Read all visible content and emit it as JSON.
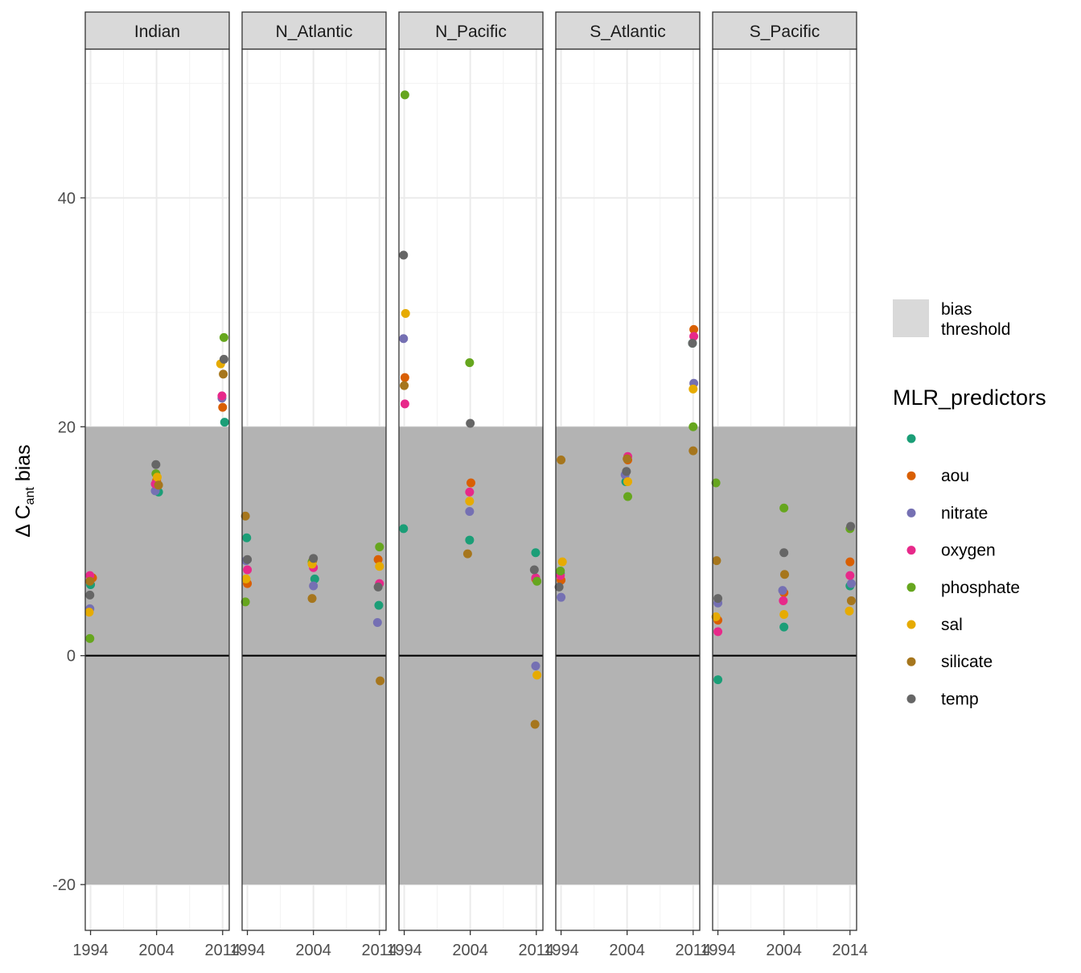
{
  "chart_data": {
    "type": "scatter",
    "ylabel_prefix": "Δ C",
    "ylabel_sub": "ant",
    "ylabel_suffix": " bias",
    "ylim": [
      -24,
      53
    ],
    "y_ticks": [
      -20,
      0,
      20,
      40
    ],
    "x_ticks": [
      1994,
      2004,
      2014
    ],
    "bias_threshold": [
      -20,
      20
    ],
    "legend": {
      "threshold_label_1": "bias",
      "threshold_label_2": "threshold",
      "title": "MLR_predictors",
      "placement": "right"
    },
    "predictors": [
      {
        "name": "",
        "color": "#1B9E77"
      },
      {
        "name": "aou",
        "color": "#D95F02"
      },
      {
        "name": "nitrate",
        "color": "#7570B3"
      },
      {
        "name": "oxygen",
        "color": "#E7298A"
      },
      {
        "name": "phosphate",
        "color": "#66A61E"
      },
      {
        "name": "sal",
        "color": "#E6AB02"
      },
      {
        "name": "silicate",
        "color": "#A6761D"
      },
      {
        "name": "temp",
        "color": "#666666"
      }
    ],
    "panels": [
      {
        "name": "Indian",
        "points": {
          "": [
            [
              2004.3,
              14.3
            ],
            [
              2014.3,
              20.4
            ],
            [
              1994.0,
              6.2
            ]
          ],
          "aou": [
            [
              1994.3,
              6.8
            ],
            [
              2004.0,
              15.3
            ],
            [
              2014.0,
              21.7
            ]
          ],
          "nitrate": [
            [
              1993.9,
              4.1
            ],
            [
              2003.8,
              14.4
            ],
            [
              2013.9,
              22.5
            ]
          ],
          "oxygen": [
            [
              1993.9,
              7.0
            ],
            [
              2003.8,
              15.0
            ],
            [
              2013.9,
              22.7
            ]
          ],
          "phosphate": [
            [
              1993.9,
              1.5
            ],
            [
              2003.9,
              15.9
            ],
            [
              2014.2,
              27.8
            ]
          ],
          "sal": [
            [
              1993.8,
              3.8
            ],
            [
              2004.1,
              15.6
            ],
            [
              2013.7,
              25.5
            ]
          ],
          "silicate": [
            [
              1993.9,
              6.5
            ],
            [
              2004.3,
              14.9
            ],
            [
              2014.1,
              24.6
            ]
          ],
          "temp": [
            [
              1993.9,
              5.3
            ],
            [
              2003.9,
              16.7
            ],
            [
              2014.2,
              25.9
            ]
          ]
        }
      },
      {
        "name": "N_Atlantic",
        "points": {
          "": [
            [
              1993.9,
              10.3
            ],
            [
              2004.2,
              6.7
            ],
            [
              2013.9,
              4.4
            ]
          ],
          "aou": [
            [
              1994.0,
              6.3
            ],
            [
              2003.9,
              8.3
            ],
            [
              2013.8,
              8.4
            ]
          ],
          "nitrate": [
            [
              1993.8,
              8.3
            ],
            [
              2004.0,
              6.1
            ],
            [
              2013.7,
              2.9
            ]
          ],
          "oxygen": [
            [
              1994.0,
              7.5
            ],
            [
              2004.0,
              7.7
            ],
            [
              2014.0,
              6.3
            ]
          ],
          "phosphate": [
            [
              1993.7,
              4.7
            ],
            [
              2003.8,
              8.2
            ],
            [
              2014.0,
              9.5
            ]
          ],
          "sal": [
            [
              1993.8,
              6.7
            ],
            [
              2003.8,
              8.0
            ],
            [
              2014.0,
              7.8
            ]
          ],
          "silicate": [
            [
              1993.7,
              12.2
            ],
            [
              2003.8,
              5.0
            ],
            [
              2014.1,
              -2.2
            ]
          ],
          "temp": [
            [
              1994.0,
              8.4
            ],
            [
              2004.0,
              8.5
            ],
            [
              2013.8,
              6.0
            ]
          ]
        }
      },
      {
        "name": "N_Pacific",
        "points": {
          "": [
            [
              1993.9,
              11.1
            ],
            [
              2003.9,
              10.1
            ],
            [
              2013.9,
              9.0
            ]
          ],
          "aou": [
            [
              1994.1,
              24.3
            ],
            [
              2004.1,
              15.1
            ],
            [
              2013.9,
              6.7
            ]
          ],
          "nitrate": [
            [
              1993.9,
              27.7
            ],
            [
              2003.9,
              12.6
            ],
            [
              2013.9,
              -0.9
            ]
          ],
          "oxygen": [
            [
              1994.1,
              22.0
            ],
            [
              2003.9,
              14.3
            ],
            [
              2013.9,
              6.8
            ]
          ],
          "phosphate": [
            [
              1994.1,
              49.0
            ],
            [
              2003.9,
              25.6
            ],
            [
              2014.1,
              6.5
            ]
          ],
          "sal": [
            [
              1994.2,
              29.9
            ],
            [
              2003.9,
              13.5
            ],
            [
              2014.1,
              -1.7
            ]
          ],
          "silicate": [
            [
              1994.0,
              23.6
            ],
            [
              2003.6,
              8.9
            ],
            [
              2013.8,
              -6.0
            ]
          ],
          "temp": [
            [
              1993.9,
              35.0
            ],
            [
              2004.0,
              20.3
            ],
            [
              2013.7,
              7.5
            ]
          ]
        }
      },
      {
        "name": "S_Atlantic",
        "points": {
          "": [
            [
              1993.9,
              7.2
            ],
            [
              2003.8,
              15.2
            ],
            [
              2013.9,
              27.3
            ]
          ],
          "aou": [
            [
              1994.0,
              6.6
            ],
            [
              2004.1,
              17.1
            ],
            [
              2014.1,
              28.5
            ]
          ],
          "nitrate": [
            [
              1994.0,
              5.1
            ],
            [
              2003.7,
              15.8
            ],
            [
              2014.1,
              23.8
            ]
          ],
          "oxygen": [
            [
              1993.9,
              7.0
            ],
            [
              2004.1,
              17.4
            ],
            [
              2014.1,
              27.9
            ]
          ],
          "phosphate": [
            [
              1993.9,
              7.4
            ],
            [
              2004.1,
              13.9
            ],
            [
              2014.0,
              20.0
            ]
          ],
          "sal": [
            [
              1994.2,
              8.2
            ],
            [
              2004.1,
              15.2
            ],
            [
              2014.0,
              23.3
            ]
          ],
          "silicate": [
            [
              1994.0,
              17.1
            ],
            [
              2004.0,
              17.2
            ],
            [
              2014.0,
              17.9
            ]
          ],
          "temp": [
            [
              1993.7,
              6.0
            ],
            [
              2003.9,
              16.1
            ],
            [
              2013.9,
              27.3
            ]
          ]
        }
      },
      {
        "name": "S_Pacific",
        "points": {
          "": [
            [
              1994.0,
              -2.1
            ],
            [
              2004.0,
              2.5
            ],
            [
              2014.0,
              6.1
            ]
          ],
          "aou": [
            [
              1994.0,
              3.1
            ],
            [
              2004.0,
              5.5
            ],
            [
              2014.0,
              8.2
            ]
          ],
          "nitrate": [
            [
              1994.0,
              4.6
            ],
            [
              2003.8,
              5.7
            ],
            [
              2014.2,
              6.3
            ]
          ],
          "oxygen": [
            [
              1994.0,
              2.1
            ],
            [
              2003.9,
              4.8
            ],
            [
              2014.0,
              7.0
            ]
          ],
          "phosphate": [
            [
              1993.7,
              15.1
            ],
            [
              2004.0,
              12.9
            ],
            [
              2014.0,
              11.1
            ]
          ],
          "sal": [
            [
              1993.7,
              3.4
            ],
            [
              2004.0,
              3.6
            ],
            [
              2013.9,
              3.9
            ]
          ],
          "silicate": [
            [
              1993.8,
              8.3
            ],
            [
              2004.1,
              7.1
            ],
            [
              2014.2,
              4.8
            ]
          ],
          "temp": [
            [
              1994.0,
              5.0
            ],
            [
              2004.0,
              9.0
            ],
            [
              2014.1,
              11.3
            ]
          ]
        }
      }
    ]
  }
}
